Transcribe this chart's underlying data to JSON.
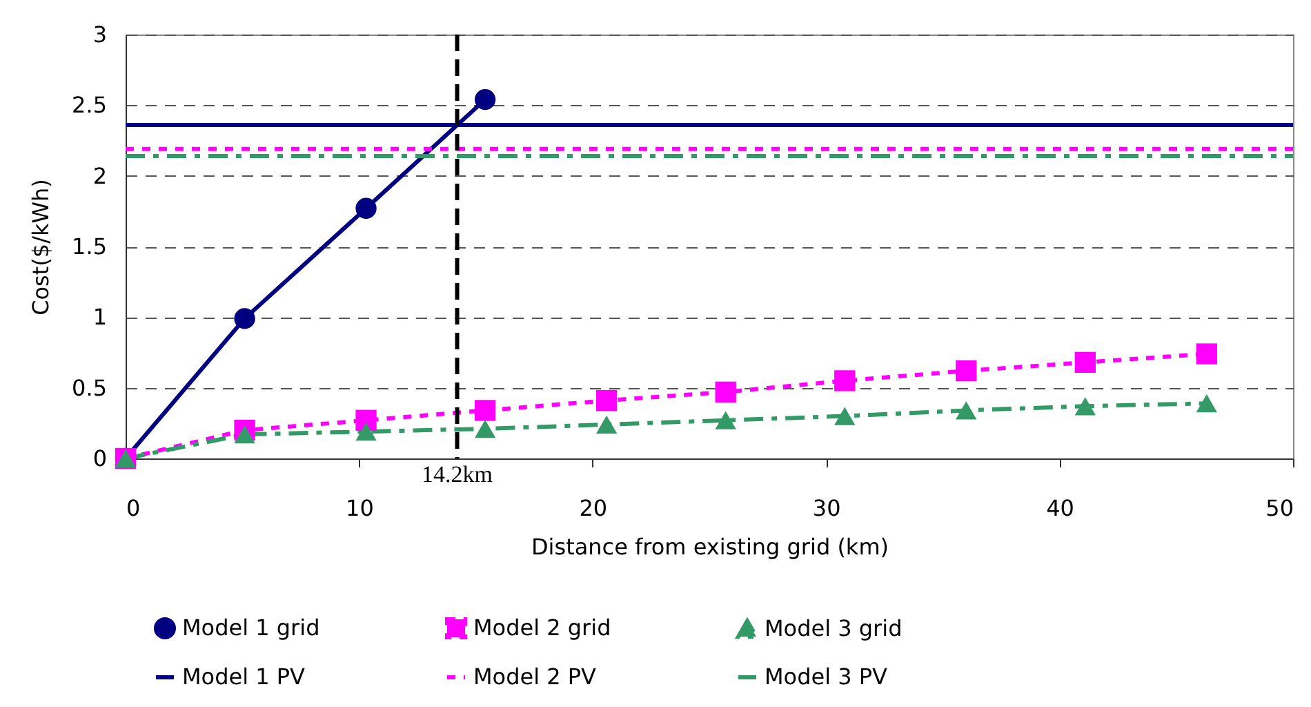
{
  "chart_data": {
    "type": "line",
    "xlabel": "Distance from existing grid (km)",
    "ylabel": "Cost($/kWh)",
    "xlim": [
      0,
      50
    ],
    "ylim": [
      0,
      3
    ],
    "xticks": [
      0,
      10,
      20,
      30,
      40,
      50
    ],
    "yticks": [
      0,
      0.5,
      1,
      1.5,
      2,
      2.5,
      3
    ],
    "grid": "y",
    "legend": "bottom",
    "series": [
      {
        "name": "Model 1 grid",
        "color": "#000080",
        "marker": "circle",
        "line_style": "solid",
        "x": [
          0,
          5.1,
          10.3,
          15.4
        ],
        "values": [
          0,
          0.99,
          1.77,
          2.54
        ]
      },
      {
        "name": "Model 2 grid",
        "color": "#ff00ff",
        "marker": "square",
        "line_style": "dotted",
        "x": [
          0,
          5.1,
          10.3,
          15.4,
          20.6,
          25.7,
          30.8,
          36,
          41.1,
          46.3
        ],
        "values": [
          0,
          0.2,
          0.27,
          0.34,
          0.41,
          0.47,
          0.55,
          0.62,
          0.68,
          0.74
        ]
      },
      {
        "name": "Model 3 grid",
        "color": "#339966",
        "marker": "triangle",
        "line_style": "dashed",
        "x": [
          0,
          5.1,
          10.3,
          15.4,
          20.6,
          25.7,
          30.8,
          36,
          41.1,
          46.3
        ],
        "values": [
          0,
          0.17,
          0.19,
          0.21,
          0.24,
          0.27,
          0.3,
          0.34,
          0.37,
          0.39
        ]
      },
      {
        "name": "Model 1 PV",
        "color": "#000080",
        "marker": "none",
        "line_style": "solid",
        "x": [
          0,
          50
        ],
        "values": [
          2.36,
          2.36
        ]
      },
      {
        "name": "Model 2 PV",
        "color": "#ff00ff",
        "marker": "none",
        "line_style": "dotted",
        "x": [
          0,
          50
        ],
        "values": [
          2.19,
          2.19
        ]
      },
      {
        "name": "Model 3 PV",
        "color": "#339966",
        "marker": "none",
        "line_style": "dashed",
        "x": [
          0,
          50
        ],
        "values": [
          2.14,
          2.14
        ]
      }
    ],
    "ref_lines": [
      {
        "axis": "x",
        "value": 14.2,
        "label": "14.2km",
        "color": "#000000",
        "line_style": "dashed"
      }
    ]
  }
}
